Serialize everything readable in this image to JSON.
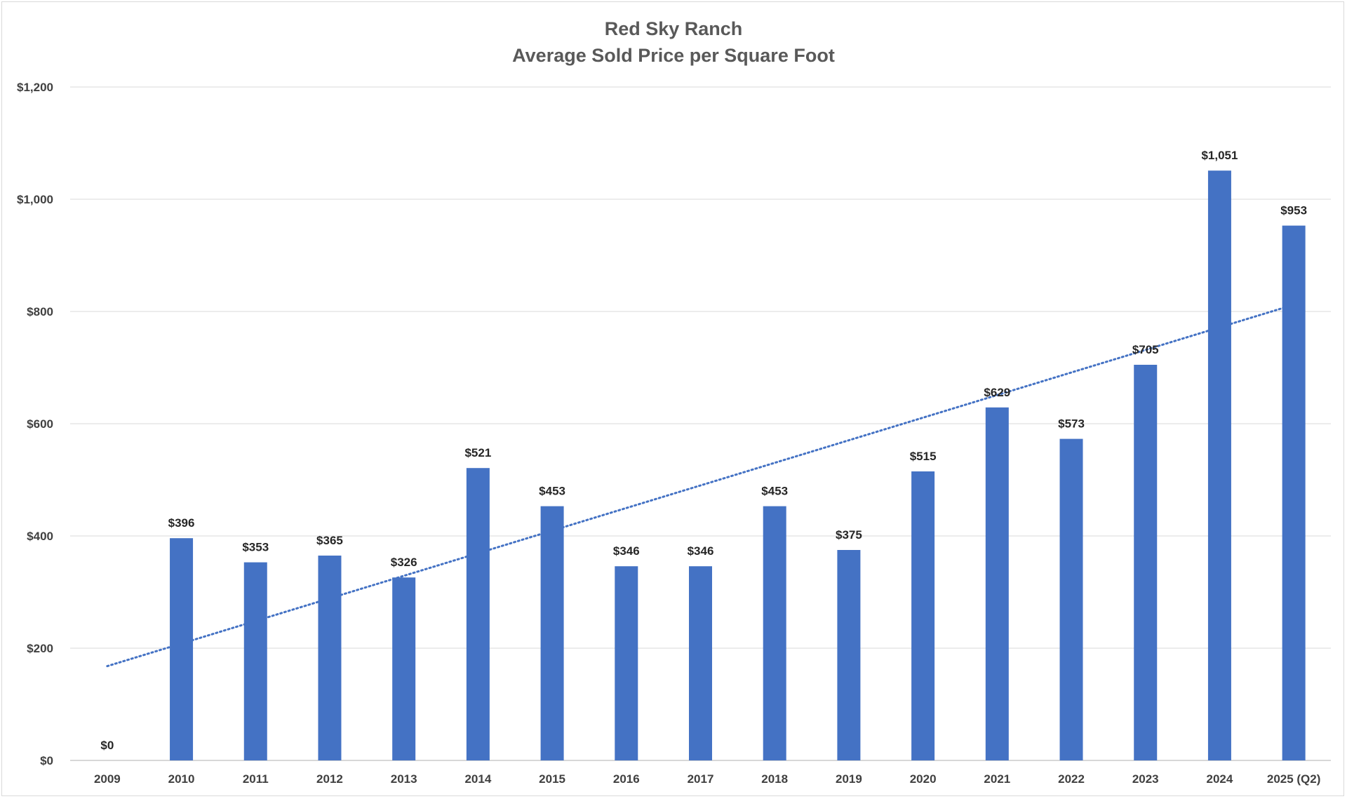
{
  "chart_data": {
    "type": "bar",
    "title": "Red Sky Ranch",
    "subtitle": "Average Sold Price per Square Foot",
    "xlabel": "",
    "ylabel": "",
    "categories": [
      "2009",
      "2010",
      "2011",
      "2012",
      "2013",
      "2014",
      "2015",
      "2016",
      "2017",
      "2018",
      "2019",
      "2020",
      "2021",
      "2022",
      "2023",
      "2024",
      "2025 (Q2)"
    ],
    "values": [
      0,
      396,
      353,
      365,
      326,
      521,
      453,
      346,
      346,
      453,
      375,
      515,
      629,
      573,
      705,
      1051,
      953
    ],
    "data_labels": [
      "$0",
      "$396",
      "$353",
      "$365",
      "$326",
      "$521",
      "$453",
      "$346",
      "$346",
      "$453",
      "$375",
      "$515",
      "$629",
      "$573",
      "$705",
      "$1,051",
      "$953"
    ],
    "ylim": [
      0,
      1200
    ],
    "yticks": [
      0,
      200,
      400,
      600,
      800,
      1000,
      1200
    ],
    "ytick_labels": [
      "$0",
      "$200",
      "$400",
      "$600",
      "$800",
      "$1,000",
      "$1,200"
    ],
    "grid": true,
    "legend": "none",
    "trendline": {
      "type": "linear",
      "style": "dotted",
      "start_value": 168,
      "end_value": 812
    },
    "colors": {
      "bar": "#4472C4",
      "trendline": "#4472C4",
      "grid": "#d9d9d9",
      "title": "#595959",
      "tick_label": "#404040",
      "data_label": "#262626"
    }
  }
}
